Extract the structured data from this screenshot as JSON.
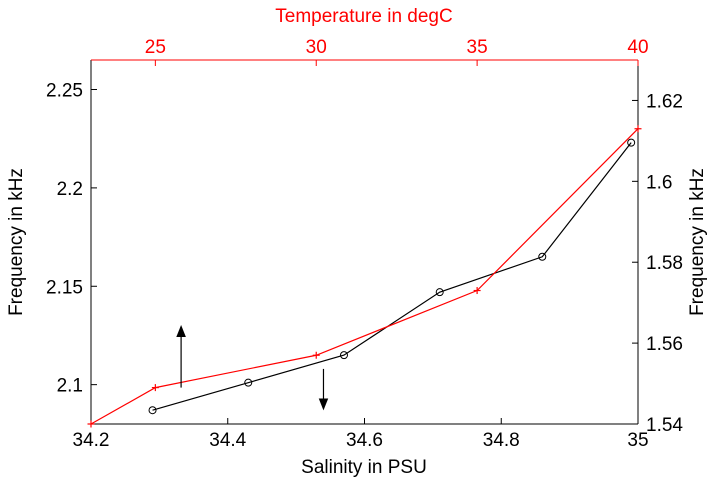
{
  "chart_data": {
    "type": "line",
    "title": "Temperature in degC",
    "xlabel": "Salinity in PSU",
    "ylabel": "Frequency in kHz",
    "x2label": "Temperature in degC",
    "y2label": "Frequency in kHz",
    "xlim": [
      34.2,
      35
    ],
    "ylim": [
      2.08,
      2.265
    ],
    "x2lim": [
      23,
      40
    ],
    "y2lim": [
      1.54,
      1.63
    ],
    "x_ticks": [
      "34.2",
      "34.4",
      "34.6",
      "34.8",
      "35"
    ],
    "y_ticks": [
      "2.1",
      "2.15",
      "2.2",
      "2.25"
    ],
    "x2_ticks": [
      "25",
      "30",
      "35",
      "40"
    ],
    "y2_ticks": [
      "1.54",
      "1.56",
      "1.58",
      "1.6",
      "1.62"
    ],
    "series": [
      {
        "axes": "salinity-vs-left-frequency",
        "color": "#000000",
        "marker": "circle",
        "x": [
          34.29,
          34.43,
          34.57,
          34.71,
          34.86,
          34.99
        ],
        "y": [
          2.087,
          2.101,
          2.115,
          2.147,
          2.165,
          2.223
        ]
      },
      {
        "axes": "temperature-vs-right-frequency",
        "color": "#ff0000",
        "marker": "plus",
        "x": [
          23.0,
          25.0,
          30.0,
          35.0,
          40.0
        ],
        "y": [
          1.54,
          1.549,
          1.557,
          1.573,
          1.613
        ]
      }
    ],
    "annotations": [
      {
        "type": "arrow",
        "direction": "up",
        "x2": 25.8,
        "y2_from": 1.549,
        "y2_to": 1.563
      },
      {
        "type": "arrow",
        "direction": "down",
        "x": 34.54,
        "y_from": 2.108,
        "y_to": 2.09
      }
    ],
    "grid": false,
    "colors": {
      "axes": "#000000",
      "top_axis": "#ff0000"
    }
  }
}
